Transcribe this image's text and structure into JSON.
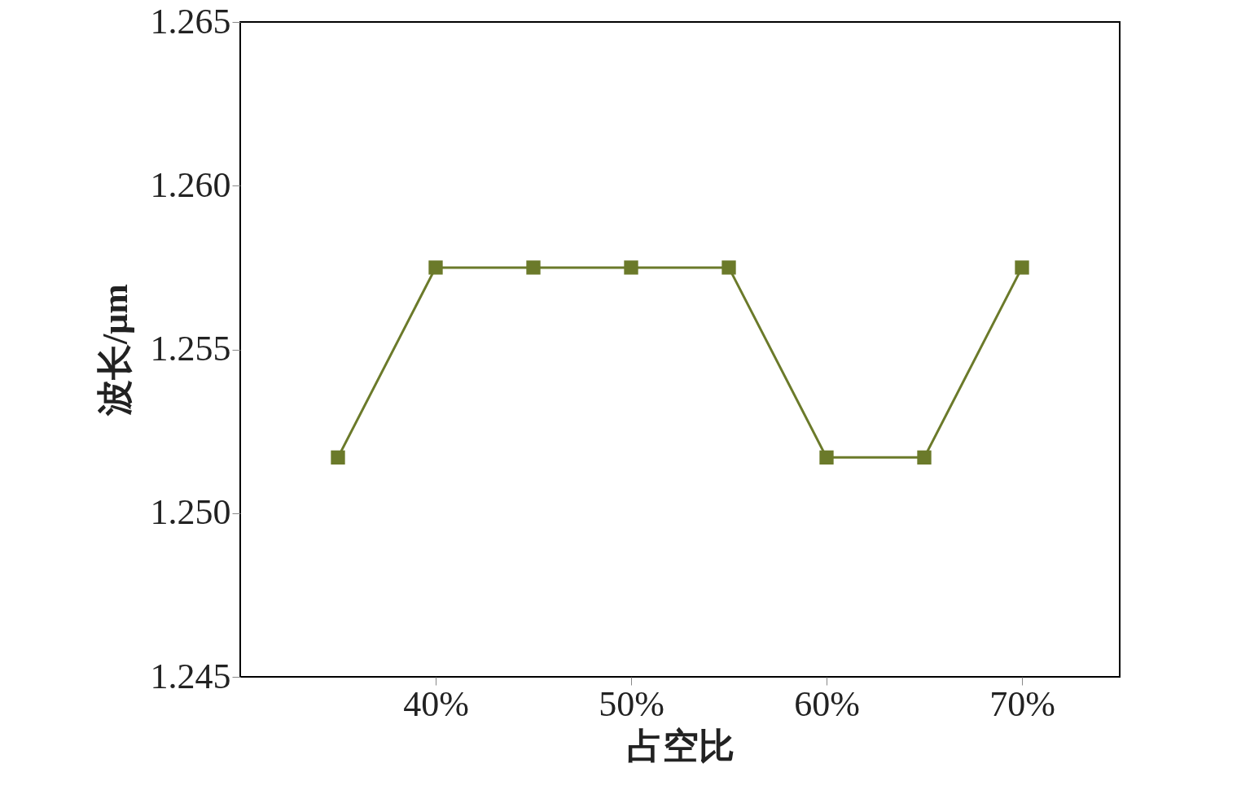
{
  "chart_data": {
    "type": "line",
    "xlabel": "占空比",
    "ylabel": "波长/μm",
    "x": [
      35,
      40,
      45,
      50,
      55,
      60,
      65,
      70
    ],
    "series": [
      {
        "color": "#6b7a2a",
        "values": [
          1.2517,
          1.2575,
          1.2575,
          1.2575,
          1.2575,
          1.2517,
          1.2517,
          1.2575
        ]
      }
    ],
    "xlim": [
      30,
      75
    ],
    "xticks": [
      {
        "value": 40,
        "label": "40%"
      },
      {
        "value": 50,
        "label": "50%"
      },
      {
        "value": 60,
        "label": "60%"
      },
      {
        "value": 70,
        "label": "70%"
      }
    ],
    "ylim": [
      1.245,
      1.265
    ],
    "yticks": [
      1.245,
      {
        "value": 1.25,
        "label": "1.250"
      },
      1.255,
      {
        "value": 1.26,
        "label": "1.260"
      },
      1.265
    ],
    "grid": false,
    "marker": "square",
    "line_style": "solid"
  }
}
